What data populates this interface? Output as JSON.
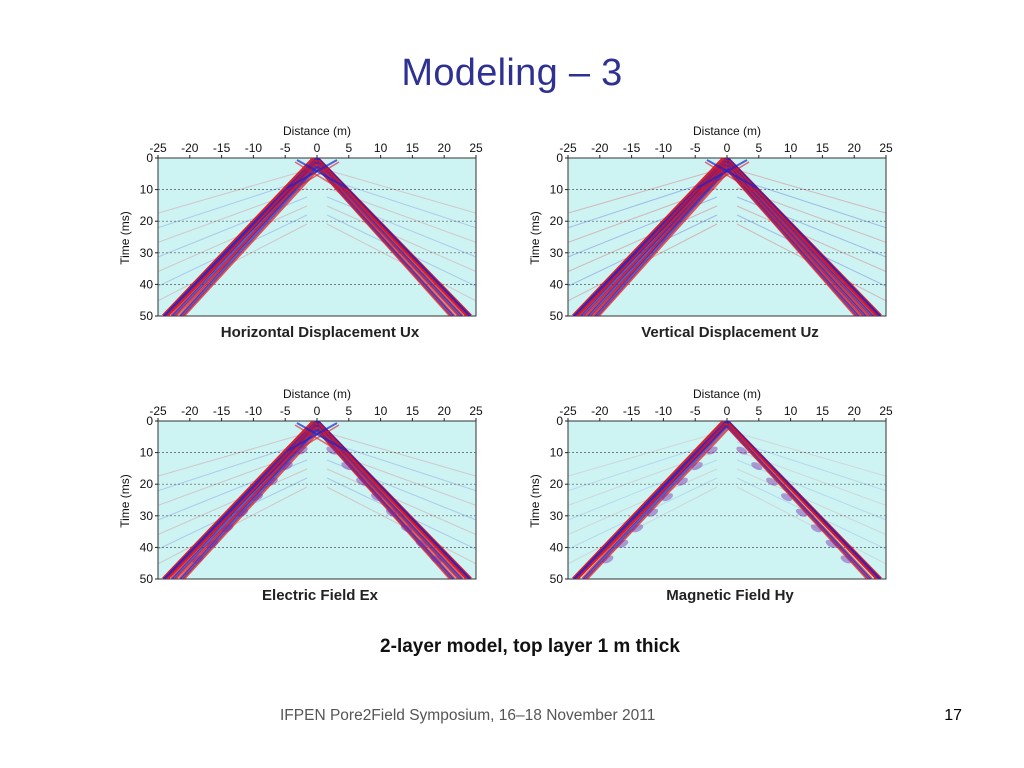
{
  "slide": {
    "title": "Modeling – 3",
    "model_caption": "2-layer model, top layer 1 m thick",
    "footer": "IFPEN Pore2Field Symposium, 16–18 November 2011",
    "page_number": "17"
  },
  "colors": {
    "title": "#2e3192",
    "plot_background": "#cdf3f3",
    "wave_red": "#e0141c",
    "wave_blue": "#1f23c8"
  },
  "panels": [
    {
      "caption": "Horizontal Displacement Ux",
      "xlabel": "Distance (m)",
      "ylabel": "Time (ms)",
      "xticks": [
        "-25",
        "-20",
        "-15",
        "-10",
        "-5",
        "0",
        "5",
        "10",
        "15",
        "20",
        "25"
      ],
      "yticks": [
        "0",
        "10",
        "20",
        "30",
        "40",
        "50"
      ]
    },
    {
      "caption": "Vertical Displacement Uz",
      "xlabel": "Distance (m)",
      "ylabel": "Time (ms)",
      "xticks": [
        "-25",
        "-20",
        "-15",
        "-10",
        "-5",
        "0",
        "5",
        "10",
        "15",
        "20",
        "25"
      ],
      "yticks": [
        "0",
        "10",
        "20",
        "30",
        "40",
        "50"
      ]
    },
    {
      "caption": "Electric Field Ex",
      "xlabel": "Distance (m)",
      "ylabel": "Time (ms)",
      "xticks": [
        "-25",
        "-20",
        "-15",
        "-10",
        "-5",
        "0",
        "5",
        "10",
        "15",
        "20",
        "25"
      ],
      "yticks": [
        "0",
        "10",
        "20",
        "30",
        "40",
        "50"
      ]
    },
    {
      "caption": "Magnetic Field  Hy",
      "xlabel": "Distance (m)",
      "ylabel": "Time (ms)",
      "xticks": [
        "-25",
        "-20",
        "-15",
        "-10",
        "-5",
        "0",
        "5",
        "10",
        "15",
        "20",
        "25"
      ],
      "yticks": [
        "0",
        "10",
        "20",
        "30",
        "40",
        "50"
      ]
    }
  ]
}
